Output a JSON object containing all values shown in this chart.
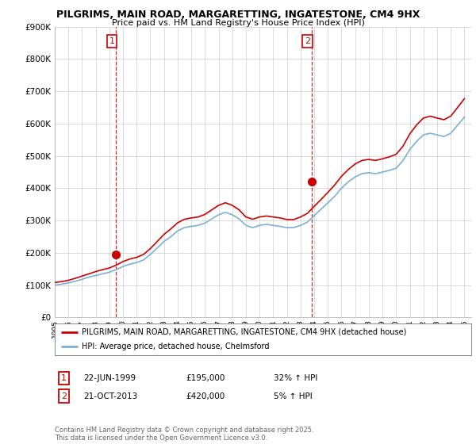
{
  "title": "PILGRIMS, MAIN ROAD, MARGARETTING, INGATESTONE, CM4 9HX",
  "subtitle": "Price paid vs. HM Land Registry's House Price Index (HPI)",
  "legend_line1": "PILGRIMS, MAIN ROAD, MARGARETTING, INGATESTONE, CM4 9HX (detached house)",
  "legend_line2": "HPI: Average price, detached house, Chelmsford",
  "footer": "Contains HM Land Registry data © Crown copyright and database right 2025.\nThis data is licensed under the Open Government Licence v3.0.",
  "sale1_label": "1",
  "sale1_date": "22-JUN-1999",
  "sale1_price": "£195,000",
  "sale1_hpi": "32% ↑ HPI",
  "sale2_label": "2",
  "sale2_date": "21-OCT-2013",
  "sale2_price": "£420,000",
  "sale2_hpi": "5% ↑ HPI",
  "vline1_x": 1999.47,
  "vline2_x": 2013.8,
  "sale1_marker_x": 1999.47,
  "sale1_marker_y": 195000,
  "sale2_marker_x": 2013.8,
  "sale2_marker_y": 420000,
  "ylim": [
    0,
    900000
  ],
  "xlim_start": 1995,
  "xlim_end": 2025.5,
  "red_color": "#cc0000",
  "blue_color": "#7ab0d4",
  "vline_color": "#cc0000",
  "grid_color": "#cccccc",
  "bg_color": "#ffffff",
  "years_hpi": [
    1995.0,
    1995.5,
    1996.0,
    1996.5,
    1997.0,
    1997.5,
    1998.0,
    1998.5,
    1999.0,
    1999.5,
    2000.0,
    2000.5,
    2001.0,
    2001.5,
    2002.0,
    2002.5,
    2003.0,
    2003.5,
    2004.0,
    2004.5,
    2005.0,
    2005.5,
    2006.0,
    2006.5,
    2007.0,
    2007.5,
    2008.0,
    2008.5,
    2009.0,
    2009.5,
    2010.0,
    2010.5,
    2011.0,
    2011.5,
    2012.0,
    2012.5,
    2013.0,
    2013.5,
    2014.0,
    2014.5,
    2015.0,
    2015.5,
    2016.0,
    2016.5,
    2017.0,
    2017.5,
    2018.0,
    2018.5,
    2019.0,
    2019.5,
    2020.0,
    2020.5,
    2021.0,
    2021.5,
    2022.0,
    2022.5,
    2023.0,
    2023.5,
    2024.0,
    2024.5,
    2025.0
  ],
  "hpi_values": [
    100000,
    103000,
    107000,
    112000,
    118000,
    125000,
    130000,
    135000,
    140000,
    148000,
    158000,
    165000,
    170000,
    178000,
    195000,
    215000,
    235000,
    250000,
    268000,
    278000,
    282000,
    285000,
    292000,
    305000,
    318000,
    325000,
    318000,
    305000,
    285000,
    278000,
    285000,
    288000,
    285000,
    282000,
    278000,
    278000,
    285000,
    295000,
    315000,
    335000,
    355000,
    375000,
    400000,
    420000,
    435000,
    445000,
    448000,
    445000,
    450000,
    455000,
    462000,
    485000,
    520000,
    545000,
    565000,
    570000,
    565000,
    560000,
    570000,
    595000,
    620000
  ],
  "red_values": [
    108000,
    111000,
    115000,
    121000,
    128000,
    135000,
    142000,
    148000,
    153000,
    162000,
    173000,
    181000,
    186000,
    195000,
    213000,
    235000,
    257000,
    274000,
    293000,
    304000,
    308000,
    311000,
    319000,
    333000,
    347000,
    355000,
    347000,
    333000,
    311000,
    304000,
    311000,
    314000,
    311000,
    308000,
    303000,
    303000,
    311000,
    322000,
    344000,
    365000,
    387000,
    410000,
    437000,
    458000,
    475000,
    486000,
    489000,
    486000,
    491000,
    497000,
    505000,
    530000,
    568000,
    596000,
    617000,
    623000,
    617000,
    612000,
    623000,
    650000,
    677000
  ]
}
